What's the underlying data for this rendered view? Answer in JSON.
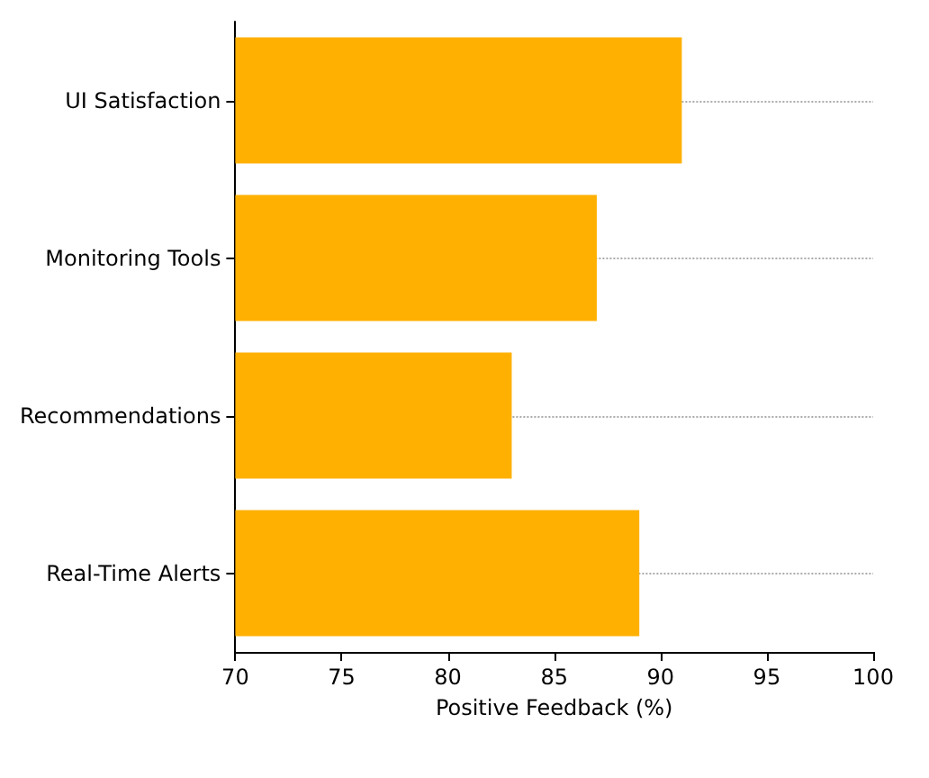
{
  "chart_data": {
    "type": "bar",
    "orientation": "horizontal",
    "categories": [
      "UI Satisfaction",
      "Monitoring Tools",
      "Recommendations",
      "Real-Time Alerts"
    ],
    "values": [
      91,
      87,
      83,
      89
    ],
    "color": "#ffb000",
    "xlabel": "Positive Feedback (%)",
    "xlim": [
      70,
      100
    ],
    "xticks": [
      70,
      75,
      80,
      85,
      90,
      95,
      100
    ],
    "grid": "y"
  }
}
